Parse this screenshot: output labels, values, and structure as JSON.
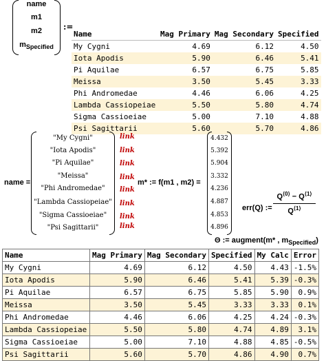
{
  "vector_assign": {
    "items": [
      "name",
      "m1",
      "m2",
      "m"
    ],
    "last_subscript": "Specified",
    "operator": ":="
  },
  "table1": {
    "headers": [
      "Name",
      "Mag Primary",
      "Mag Secondary",
      "Specified"
    ],
    "rows": [
      [
        "My Cygni",
        "4.69",
        "6.12",
        "4.50"
      ],
      [
        "Iota Apodis",
        "5.90",
        "6.46",
        "5.41"
      ],
      [
        "Pi Aquilae",
        "6.57",
        "6.75",
        "5.85"
      ],
      [
        "Meissa",
        "3.50",
        "5.45",
        "3.33"
      ],
      [
        "Phi Andromedae",
        "4.46",
        "6.06",
        "4.25"
      ],
      [
        "Lambda Cassiopeiae",
        "5.50",
        "5.80",
        "4.74"
      ],
      [
        "Sigma Cassioeiae",
        "5.00",
        "7.10",
        "4.88"
      ],
      [
        "Psi Sagittarii",
        "5.60",
        "5.70",
        "4.86"
      ]
    ]
  },
  "name_vector": {
    "label": "name =",
    "items": [
      "\"My Cygni\"",
      "\"Iota Apodis\"",
      "\"Pi Aquilae\"",
      "\"Meissa\"",
      "\"Phi Andromedae\"",
      "\"Lambda Cassiopeiae\"",
      "\"Sigma Cassioeiae\"",
      "\"Psi Sagittarii\""
    ],
    "link_label": "link"
  },
  "mstar": {
    "label": "m* := f(m1 , m2) =",
    "values": [
      "4.432",
      "5.392",
      "5.904",
      "3.332",
      "4.236",
      "4.887",
      "4.853",
      "4.896"
    ]
  },
  "err_function": {
    "label": "err(Q) :=",
    "numerator": "Q",
    "numerator_sup1": "⟨0⟩",
    "minus": " − ",
    "numerator_sup2": "⟨1⟩",
    "denominator": "Q",
    "denominator_sup": "⟨1⟩"
  },
  "theta": {
    "prefix": "Θ := augment(m* , m",
    "subscript": "Specified",
    "suffix": ")"
  },
  "table2": {
    "headers": [
      "Name",
      "Mag Primary",
      "Mag Secondary",
      "Specified",
      "My Calc",
      "Error"
    ],
    "rows": [
      [
        "My Cygni",
        "4.69",
        "6.12",
        "4.50",
        "4.43",
        "-1.5%"
      ],
      [
        "Iota Apodis",
        "5.90",
        "6.46",
        "5.41",
        "5.39",
        "-0.3%"
      ],
      [
        "Pi Aquilae",
        "6.57",
        "6.75",
        "5.85",
        "5.90",
        "0.9%"
      ],
      [
        "Meissa",
        "3.50",
        "5.45",
        "3.33",
        "3.33",
        "0.1%"
      ],
      [
        "Phi Andromedae",
        "4.46",
        "6.06",
        "4.25",
        "4.24",
        "-0.3%"
      ],
      [
        "Lambda Cassiopeiae",
        "5.50",
        "5.80",
        "4.74",
        "4.89",
        "3.1%"
      ],
      [
        "Sigma Cassioeiae",
        "5.00",
        "7.10",
        "4.88",
        "4.85",
        "-0.5%"
      ],
      [
        "Psi Sagittarii",
        "5.60",
        "5.70",
        "4.86",
        "4.90",
        "0.7%"
      ]
    ]
  },
  "colors": {
    "row_highlight": "#fdf3d6",
    "link": "#c00000"
  }
}
